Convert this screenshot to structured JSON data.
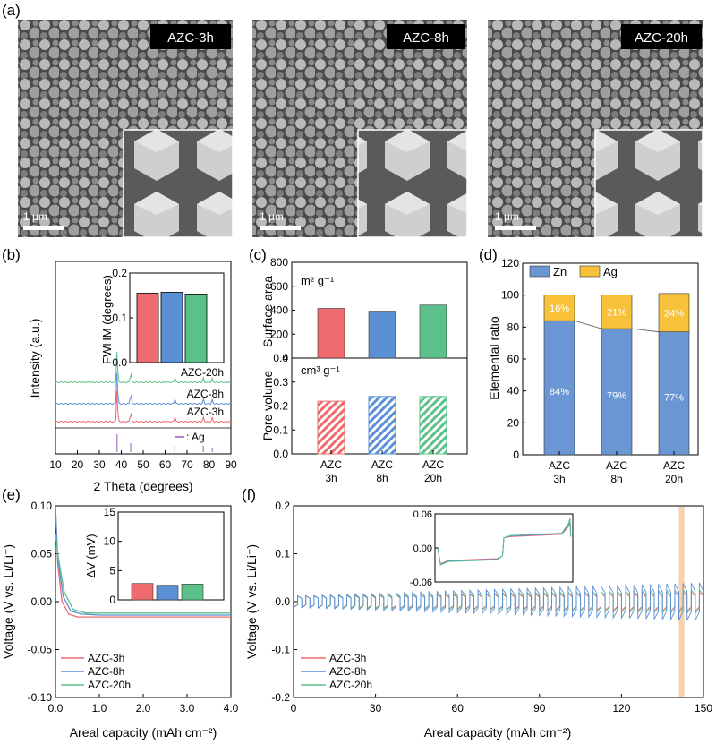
{
  "colors": {
    "red": "#ee6b6e",
    "blue": "#5b8fd6",
    "green": "#5cc08a",
    "zn": "#6a97d3",
    "ag": "#f7c23a",
    "peach": "#f6c79b"
  },
  "panel_a": {
    "label": "(a)",
    "images": [
      {
        "title": "AZC-3h",
        "scale": "1 μm"
      },
      {
        "title": "AZC-8h",
        "scale": "1 μm"
      },
      {
        "title": "AZC-20h",
        "scale": "1 μm"
      }
    ]
  },
  "chart_data": [
    {
      "id": "b",
      "label": "(b)",
      "type": "line",
      "xlabel": "2 Theta (degrees)",
      "ylabel": "Intensity (a.u.)",
      "xlim": [
        10,
        90
      ],
      "xticks": [
        "10",
        "20",
        "30",
        "40",
        "50",
        "60",
        "70",
        "80",
        "90"
      ],
      "series": [
        {
          "name": "AZC-20h",
          "peaks": [
            38.1,
            44.3,
            64.4,
            77.4,
            81.5
          ]
        },
        {
          "name": "AZC-8h",
          "peaks": [
            38.1,
            44.3,
            64.4,
            77.4,
            81.5
          ]
        },
        {
          "name": "AZC-3h",
          "peaks": [
            38.1,
            44.3,
            64.4,
            77.4,
            81.5
          ]
        }
      ],
      "reference": {
        "name": ": Ag",
        "peaks": [
          38.1,
          44.3,
          64.4,
          77.4,
          81.5
        ]
      },
      "inset": {
        "type": "bar",
        "ylabel": "FWHM (degrees)",
        "ylim": [
          0,
          0.2
        ],
        "yticks": [
          "0.0",
          "0.1",
          "0.2"
        ],
        "values": [
          0.155,
          0.157,
          0.153
        ]
      }
    },
    {
      "id": "c",
      "label": "(c)",
      "type": "bar",
      "categories": [
        [
          "AZC",
          "3h"
        ],
        [
          "AZC",
          "8h"
        ],
        [
          "AZC",
          "20h"
        ]
      ],
      "top": {
        "ylabel": "Surface area",
        "unit": "m² g⁻¹",
        "ylim": [
          0,
          800
        ],
        "yticks": [
          "0",
          "200",
          "400",
          "600",
          "800"
        ],
        "values": [
          415,
          392,
          443
        ]
      },
      "bottom": {
        "ylabel": "Pore volume",
        "unit": "cm³ g⁻¹",
        "ylim": [
          0,
          0.4
        ],
        "yticks": [
          "0.0",
          "0.1",
          "0.2",
          "0.3",
          "0.4"
        ],
        "values": [
          0.22,
          0.24,
          0.24
        ]
      }
    },
    {
      "id": "d",
      "label": "(d)",
      "type": "bar",
      "stacked": true,
      "ylabel": "Elemental ratio",
      "ylim": [
        0,
        120
      ],
      "yticks": [
        "0",
        "20",
        "40",
        "60",
        "80",
        "100",
        "120"
      ],
      "categories": [
        [
          "AZC",
          "3h"
        ],
        [
          "AZC",
          "8h"
        ],
        [
          "AZC",
          "20h"
        ]
      ],
      "series": [
        {
          "name": "Zn",
          "values": [
            84,
            79,
            77
          ],
          "labels": [
            "84%",
            "79%",
            "77%"
          ]
        },
        {
          "name": "Ag",
          "values": [
            16,
            21,
            24
          ],
          "labels": [
            "16%",
            "21%",
            "24%"
          ]
        }
      ]
    },
    {
      "id": "e",
      "label": "(e)",
      "type": "line",
      "xlabel": "Areal capacity (mAh cm⁻²)",
      "ylabel": "Voltage (V vs. Li/Li⁺)",
      "xlim": [
        0,
        4
      ],
      "ylim": [
        -0.1,
        0.1
      ],
      "xticks": [
        "0.0",
        "1.0",
        "2.0",
        "3.0",
        "4.0"
      ],
      "yticks": [
        "-0.10",
        "-0.05",
        "0.00",
        "0.05",
        "0.10"
      ],
      "legend": [
        "AZC-3h",
        "AZC-8h",
        "AZC-20h"
      ],
      "series": [
        {
          "name": "AZC-3h",
          "points": [
            [
              0,
              0.1
            ],
            [
              0.05,
              0.04
            ],
            [
              0.15,
              0.0
            ],
            [
              0.3,
              -0.013
            ],
            [
              0.5,
              -0.016
            ],
            [
              1,
              -0.016
            ],
            [
              2,
              -0.016
            ],
            [
              3,
              -0.016
            ],
            [
              4,
              -0.016
            ]
          ]
        },
        {
          "name": "AZC-8h",
          "points": [
            [
              0,
              0.1
            ],
            [
              0.05,
              0.045
            ],
            [
              0.18,
              0.005
            ],
            [
              0.35,
              -0.01
            ],
            [
              0.6,
              -0.013
            ],
            [
              1,
              -0.014
            ],
            [
              2,
              -0.014
            ],
            [
              3,
              -0.014
            ],
            [
              4,
              -0.014
            ]
          ]
        },
        {
          "name": "AZC-20h",
          "points": [
            [
              0,
              0.07
            ],
            [
              0.05,
              0.05
            ],
            [
              0.2,
              0.01
            ],
            [
              0.4,
              -0.008
            ],
            [
              0.7,
              -0.012
            ],
            [
              1,
              -0.012
            ],
            [
              2,
              -0.012
            ],
            [
              3,
              -0.012
            ],
            [
              4,
              -0.012
            ]
          ]
        }
      ],
      "inset": {
        "type": "bar",
        "ylabel": "ΔV (mV)",
        "ylim": [
          0,
          15
        ],
        "yticks": [
          "0",
          "5",
          "10",
          "15"
        ],
        "values": [
          2.8,
          2.5,
          2.7
        ]
      }
    },
    {
      "id": "f",
      "label": "(f)",
      "type": "line",
      "xlabel": "Areal capacity (mAh cm⁻²)",
      "ylabel": "Voltage (V vs. Li/Li⁺)",
      "xlim": [
        0,
        150
      ],
      "ylim": [
        -0.2,
        0.2
      ],
      "xticks": [
        "0",
        "30",
        "60",
        "90",
        "120",
        "150"
      ],
      "yticks": [
        "-0.2",
        "-0.1",
        "0.0",
        "0.1",
        "0.2"
      ],
      "legend": [
        "AZC-3h",
        "AZC-8h",
        "AZC-20h"
      ],
      "cycle_period": 3,
      "amplitude_start": 0.012,
      "amplitude_end": {
        "AZC-3h": 0.02,
        "AZC-8h": 0.04,
        "AZC-20h": 0.025
      },
      "highlight_x": [
        141,
        143
      ],
      "inset": {
        "ylim": [
          -0.06,
          0.06
        ],
        "yticks": [
          "-0.06",
          "0.00",
          "0.06"
        ]
      }
    }
  ]
}
